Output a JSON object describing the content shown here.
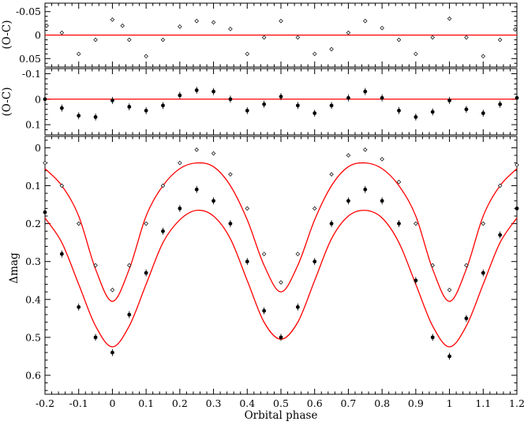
{
  "chart_data": [
    {
      "panel": "oc_top",
      "type": "scatter",
      "ylabel": "(O-C)",
      "xlim": [
        -0.2,
        1.2
      ],
      "ylim": [
        -0.068,
        0.068
      ],
      "y_inverted": true,
      "yticks": [
        "-0.05",
        "0",
        "0.05"
      ],
      "ytick_values": [
        -0.05,
        0,
        0.05
      ],
      "reference_line": 0,
      "series": [
        {
          "marker": "open",
          "x": [
            -0.195,
            -0.15,
            -0.1,
            -0.05,
            0.0,
            0.03,
            0.05,
            0.1,
            0.15,
            0.2,
            0.25,
            0.3,
            0.35,
            0.4,
            0.45,
            0.5,
            0.55,
            0.6,
            0.65,
            0.7,
            0.75,
            0.8,
            0.85,
            0.9,
            0.95,
            1.0,
            1.05,
            1.1,
            1.15,
            1.195
          ],
          "y": [
            -0.02,
            -0.005,
            0.04,
            0.01,
            -0.033,
            -0.02,
            0.01,
            0.045,
            0.01,
            -0.018,
            -0.03,
            -0.027,
            -0.013,
            0.04,
            0.005,
            -0.03,
            0.005,
            0.04,
            0.03,
            -0.005,
            -0.03,
            -0.015,
            0.01,
            0.04,
            0.005,
            -0.035,
            0.005,
            0.045,
            0.01,
            -0.012
          ]
        }
      ]
    },
    {
      "panel": "oc_middle",
      "type": "scatter",
      "ylabel": "(O-C)",
      "xlim": [
        -0.2,
        1.2
      ],
      "ylim": [
        -0.12,
        0.14
      ],
      "y_inverted": true,
      "yticks": [
        "-0.1",
        "0",
        "0.1"
      ],
      "ytick_values": [
        -0.1,
        0,
        0.1
      ],
      "reference_line": 0,
      "series": [
        {
          "marker": "filled",
          "x": [
            -0.2,
            -0.15,
            -0.1,
            -0.05,
            0.0,
            0.05,
            0.1,
            0.15,
            0.2,
            0.25,
            0.3,
            0.35,
            0.4,
            0.45,
            0.5,
            0.55,
            0.6,
            0.65,
            0.7,
            0.75,
            0.8,
            0.85,
            0.9,
            0.95,
            1.0,
            1.05,
            1.1,
            1.15,
            1.2
          ],
          "y": [
            0.0,
            0.035,
            0.065,
            0.07,
            0.005,
            0.03,
            0.045,
            0.025,
            -0.015,
            -0.035,
            -0.03,
            0.0,
            0.045,
            0.02,
            -0.01,
            0.025,
            0.055,
            0.025,
            -0.005,
            -0.03,
            -0.005,
            0.045,
            0.07,
            0.05,
            0.005,
            0.04,
            0.055,
            0.02,
            -0.005
          ]
        }
      ]
    },
    {
      "panel": "light_curves",
      "type": "scatter",
      "xlabel": "Orbital phase",
      "ylabel": "Δmag",
      "xlim": [
        -0.2,
        1.2
      ],
      "ylim": [
        -0.03,
        0.65
      ],
      "y_inverted": true,
      "xticks": [
        "-0.2",
        "-0.1",
        "0",
        "0.1",
        "0.2",
        "0.3",
        "0.4",
        "0.5",
        "0.6",
        "0.7",
        "0.8",
        "0.9",
        "1",
        "1.1",
        "1.2"
      ],
      "xtick_values": [
        -0.2,
        -0.1,
        0,
        0.1,
        0.2,
        0.3,
        0.4,
        0.5,
        0.6,
        0.7,
        0.8,
        0.9,
        1.0,
        1.1,
        1.2
      ],
      "yticks": [
        "0",
        "0.1",
        "0.2",
        "0.3",
        "0.4",
        "0.5",
        "0.6"
      ],
      "ytick_values": [
        0,
        0.1,
        0.2,
        0.3,
        0.4,
        0.5,
        0.6
      ],
      "series": [
        {
          "marker": "open",
          "x": [
            -0.2,
            -0.15,
            -0.1,
            -0.05,
            0.0,
            0.05,
            0.1,
            0.15,
            0.2,
            0.25,
            0.3,
            0.35,
            0.4,
            0.45,
            0.5,
            0.55,
            0.6,
            0.65,
            0.7,
            0.75,
            0.8,
            0.85,
            0.9,
            0.95,
            1.0,
            1.05,
            1.1,
            1.15,
            1.2
          ],
          "y": [
            0.04,
            0.1,
            0.2,
            0.31,
            0.375,
            0.31,
            0.2,
            0.1,
            0.04,
            0.005,
            0.015,
            0.07,
            0.16,
            0.28,
            0.355,
            0.28,
            0.16,
            0.07,
            0.02,
            0.005,
            0.03,
            0.09,
            0.2,
            0.31,
            0.375,
            0.31,
            0.2,
            0.1,
            0.045
          ]
        },
        {
          "marker": "filled",
          "x": [
            -0.2,
            -0.15,
            -0.1,
            -0.05,
            0.0,
            0.05,
            0.1,
            0.15,
            0.2,
            0.25,
            0.3,
            0.35,
            0.4,
            0.45,
            0.5,
            0.55,
            0.6,
            0.65,
            0.7,
            0.75,
            0.8,
            0.85,
            0.9,
            0.95,
            1.0,
            1.05,
            1.1,
            1.15,
            1.2
          ],
          "y": [
            0.17,
            0.28,
            0.42,
            0.5,
            0.54,
            0.44,
            0.33,
            0.22,
            0.16,
            0.11,
            0.14,
            0.2,
            0.3,
            0.43,
            0.5,
            0.42,
            0.3,
            0.2,
            0.14,
            0.11,
            0.14,
            0.2,
            0.35,
            0.5,
            0.55,
            0.45,
            0.33,
            0.23,
            0.16
          ]
        }
      ],
      "models": [
        {
          "x": [
            -0.2,
            -0.15,
            -0.1,
            -0.05,
            0.0,
            0.05,
            0.1,
            0.15,
            0.2,
            0.25,
            0.3,
            0.35,
            0.4,
            0.45,
            0.5,
            0.55,
            0.6,
            0.65,
            0.7,
            0.75,
            0.8,
            0.85,
            0.9,
            0.95,
            1.0,
            1.05,
            1.1,
            1.15,
            1.2
          ],
          "y": [
            0.055,
            0.1,
            0.18,
            0.32,
            0.405,
            0.32,
            0.18,
            0.1,
            0.055,
            0.04,
            0.05,
            0.1,
            0.19,
            0.31,
            0.38,
            0.31,
            0.19,
            0.1,
            0.05,
            0.04,
            0.055,
            0.1,
            0.18,
            0.32,
            0.405,
            0.32,
            0.18,
            0.1,
            0.055
          ]
        },
        {
          "x": [
            -0.2,
            -0.15,
            -0.1,
            -0.05,
            0.0,
            0.05,
            0.1,
            0.15,
            0.2,
            0.25,
            0.3,
            0.35,
            0.4,
            0.45,
            0.5,
            0.55,
            0.6,
            0.65,
            0.7,
            0.75,
            0.8,
            0.85,
            0.9,
            0.95,
            1.0,
            1.05,
            1.1,
            1.15,
            1.2
          ],
          "y": [
            0.185,
            0.25,
            0.36,
            0.47,
            0.525,
            0.47,
            0.36,
            0.25,
            0.19,
            0.165,
            0.18,
            0.24,
            0.35,
            0.46,
            0.505,
            0.46,
            0.35,
            0.24,
            0.18,
            0.165,
            0.185,
            0.25,
            0.36,
            0.47,
            0.525,
            0.47,
            0.36,
            0.25,
            0.185
          ]
        }
      ]
    }
  ]
}
